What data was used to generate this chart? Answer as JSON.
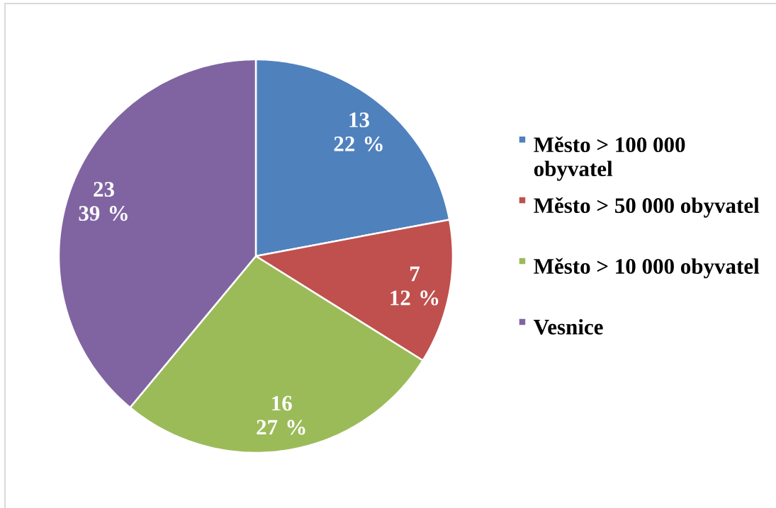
{
  "chart_data": {
    "type": "pie",
    "categories": [
      "Město > 100 000 obyvatel",
      "Město > 50 000 obyvatel",
      "Město > 10 000 obyvatel",
      "Vesnice"
    ],
    "values": [
      13,
      7,
      16,
      23
    ],
    "colors": [
      "#4f81bd",
      "#c0504d",
      "#9bbb59",
      "#8064a2"
    ],
    "value_labels": [
      "13\n22 %",
      "7\n12 %",
      "16\n27 %",
      "23\n39 %"
    ],
    "legend": "right"
  }
}
